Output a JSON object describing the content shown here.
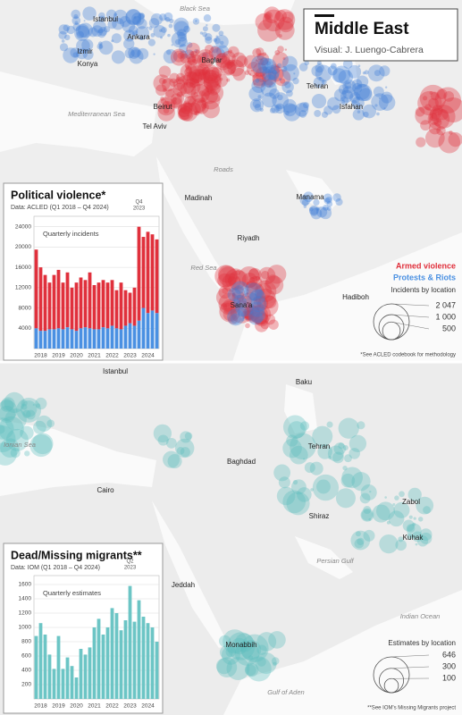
{
  "header": {
    "title": "Middle East",
    "credit": "Visual: J. Luengo-Cabrera"
  },
  "top_map": {
    "labels": [
      "Black Sea",
      "Istanbul",
      "Ankara",
      "Izmir",
      "Konya",
      "Baglar",
      "Tehran",
      "Isfahan",
      "Mediterranean Sea",
      "Beirut",
      "Tel Aviv",
      "Roads",
      "Madinah",
      "Manama",
      "Riyadh",
      "Red Sea",
      "Sana'a",
      "Hadiboh"
    ],
    "legend": {
      "size_title": "Incidents by location",
      "sizes": [
        {
          "value": 2047,
          "label": "2 047"
        },
        {
          "value": 1000,
          "label": "1 000"
        },
        {
          "value": 500,
          "label": "500"
        }
      ],
      "note": "*See ACLED codebook for methodology"
    }
  },
  "bottom_map": {
    "labels": [
      "Istanbul",
      "Baku",
      "Ionian Sea",
      "Cairo",
      "Baghdad",
      "Tehran",
      "Shiraz",
      "Zabol",
      "Kuhak",
      "Persian Gulf",
      "Jeddah",
      "Indian Ocean",
      "Monabbih",
      "Gulf of Aden"
    ],
    "legend": {
      "size_title": "Estimates by location",
      "sizes": [
        646,
        300,
        100
      ],
      "note": "**See IOM's Missing Migrants project"
    }
  },
  "chart_data": [
    {
      "type": "bar",
      "stacked": true,
      "title": "Political violence*",
      "subtitle": "Data: ACLED (Q1 2018 – Q4 2024)",
      "annotation": "Quarterly incidents",
      "highlight": [
        "Q4",
        "2023"
      ],
      "categories": [
        "2018",
        null,
        null,
        null,
        "2019",
        null,
        null,
        null,
        "2020",
        null,
        null,
        null,
        "2021",
        null,
        null,
        null,
        "2022",
        null,
        null,
        null,
        "2023",
        null,
        null,
        null,
        "2024",
        null,
        null,
        null
      ],
      "series": [
        {
          "name": "Protests & Riots",
          "color": "#4a90e2",
          "values": [
            4000,
            3500,
            3500,
            3800,
            3800,
            4000,
            3800,
            4200,
            3800,
            3500,
            4000,
            4200,
            4000,
            3800,
            3800,
            4200,
            4000,
            4500,
            4000,
            3800,
            4500,
            5000,
            4500,
            5500,
            8000,
            7000,
            7500,
            7000
          ]
        },
        {
          "name": "Armed violence",
          "color": "#e0303c",
          "values": [
            15500,
            12500,
            11000,
            9200,
            10700,
            11500,
            9200,
            10800,
            8200,
            9500,
            10000,
            9300,
            11000,
            8700,
            9200,
            9300,
            9000,
            9000,
            7500,
            9200,
            7000,
            6000,
            7500,
            18500,
            14000,
            16000,
            15000,
            14500
          ]
        }
      ],
      "ylim": [
        0,
        25000
      ],
      "yticks": [
        4000,
        8000,
        12000,
        16000,
        20000,
        24000
      ],
      "grid": true
    },
    {
      "type": "bar",
      "title": "Dead/Missing migrants**",
      "subtitle": "Data: IOM (Q1 2018 – Q4 2024)",
      "annotation": "Quarterly estimates",
      "highlight": [
        "Q2",
        "2023"
      ],
      "categories": [
        "2018",
        null,
        null,
        null,
        "2019",
        null,
        null,
        null,
        "2020",
        null,
        null,
        null,
        "2021",
        null,
        null,
        null,
        "2022",
        null,
        null,
        null,
        "2023",
        null,
        null,
        null,
        "2024",
        null,
        null,
        null
      ],
      "values": [
        880,
        1060,
        900,
        620,
        420,
        880,
        420,
        580,
        460,
        300,
        700,
        620,
        720,
        1000,
        1120,
        900,
        1000,
        1270,
        1200,
        960,
        1100,
        1580,
        1080,
        1380,
        1150,
        1060,
        1000,
        800
      ],
      "color": "#6cc5c5",
      "ylim": [
        0,
        1650
      ],
      "yticks": [
        200,
        400,
        600,
        800,
        1000,
        1200,
        1400,
        1600
      ],
      "grid": true
    }
  ]
}
